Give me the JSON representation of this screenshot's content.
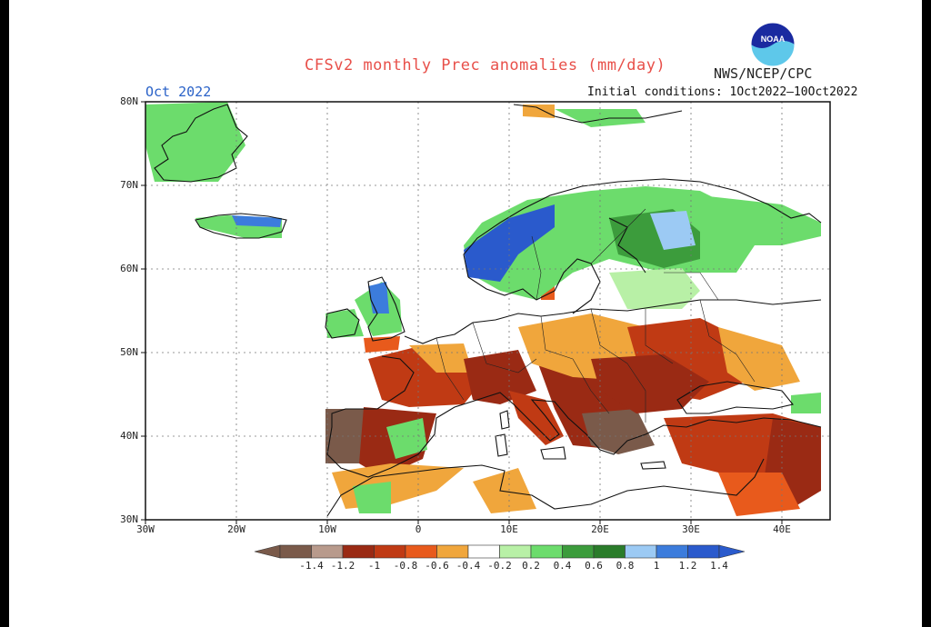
{
  "header": {
    "title": "CFSv2 monthly Prec anomalies (mm/day)",
    "month": "Oct 2022",
    "agency": "NWS/NCEP/CPC",
    "initial_conditions": "Initial conditions: 1Oct2022–10Oct2022",
    "logo_text": "NOAA"
  },
  "map": {
    "lat_labels": [
      "80N",
      "70N",
      "60N",
      "50N",
      "40N",
      "30N"
    ],
    "lon_labels": [
      "30W",
      "20W",
      "10W",
      "0",
      "10E",
      "20E",
      "30E",
      "40E"
    ],
    "extent": {
      "lon": [
        -30,
        45
      ],
      "lat": [
        30,
        80
      ]
    }
  },
  "colorbar": {
    "labels": [
      "-1.4",
      "-1.2",
      "-1",
      "-0.8",
      "-0.6",
      "-0.4",
      "-0.2",
      "0.2",
      "0.4",
      "0.6",
      "0.8",
      "1",
      "1.2",
      "1.4"
    ],
    "colors": [
      "#7a5a4a",
      "#b89a8c",
      "#9a2a14",
      "#c03a14",
      "#e85a1c",
      "#f0a63c",
      "#ffffff",
      "#b8f0a6",
      "#6cdc6c",
      "#3c9c3c",
      "#2a7c2a",
      "#9ccaf4",
      "#3c7cdc",
      "#2a5acc"
    ]
  }
}
